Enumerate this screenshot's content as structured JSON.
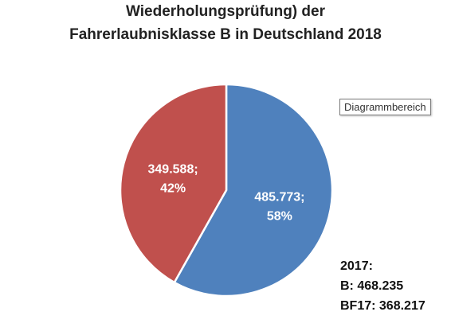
{
  "chart_data": {
    "type": "pie",
    "title_lines": [
      "Wiederholungsprüfung) der",
      "Fahrerlaubnisklasse B in Deutschland 2018"
    ],
    "slices": [
      {
        "value": 485773,
        "label_value": "485.773;",
        "label_percent": "58%",
        "color": "#4f81bd"
      },
      {
        "value": 349588,
        "label_value": "349.588;",
        "label_percent": "42%",
        "color": "#c0504d"
      }
    ],
    "start_angle_deg": 0,
    "direction": "clockwise",
    "slice_border_color": "#ffffff"
  },
  "tooltip": {
    "text": "Diagrammbereich"
  },
  "note": {
    "lines": [
      "2017:",
      "B: 468.235",
      "BF17: 368.217"
    ]
  }
}
